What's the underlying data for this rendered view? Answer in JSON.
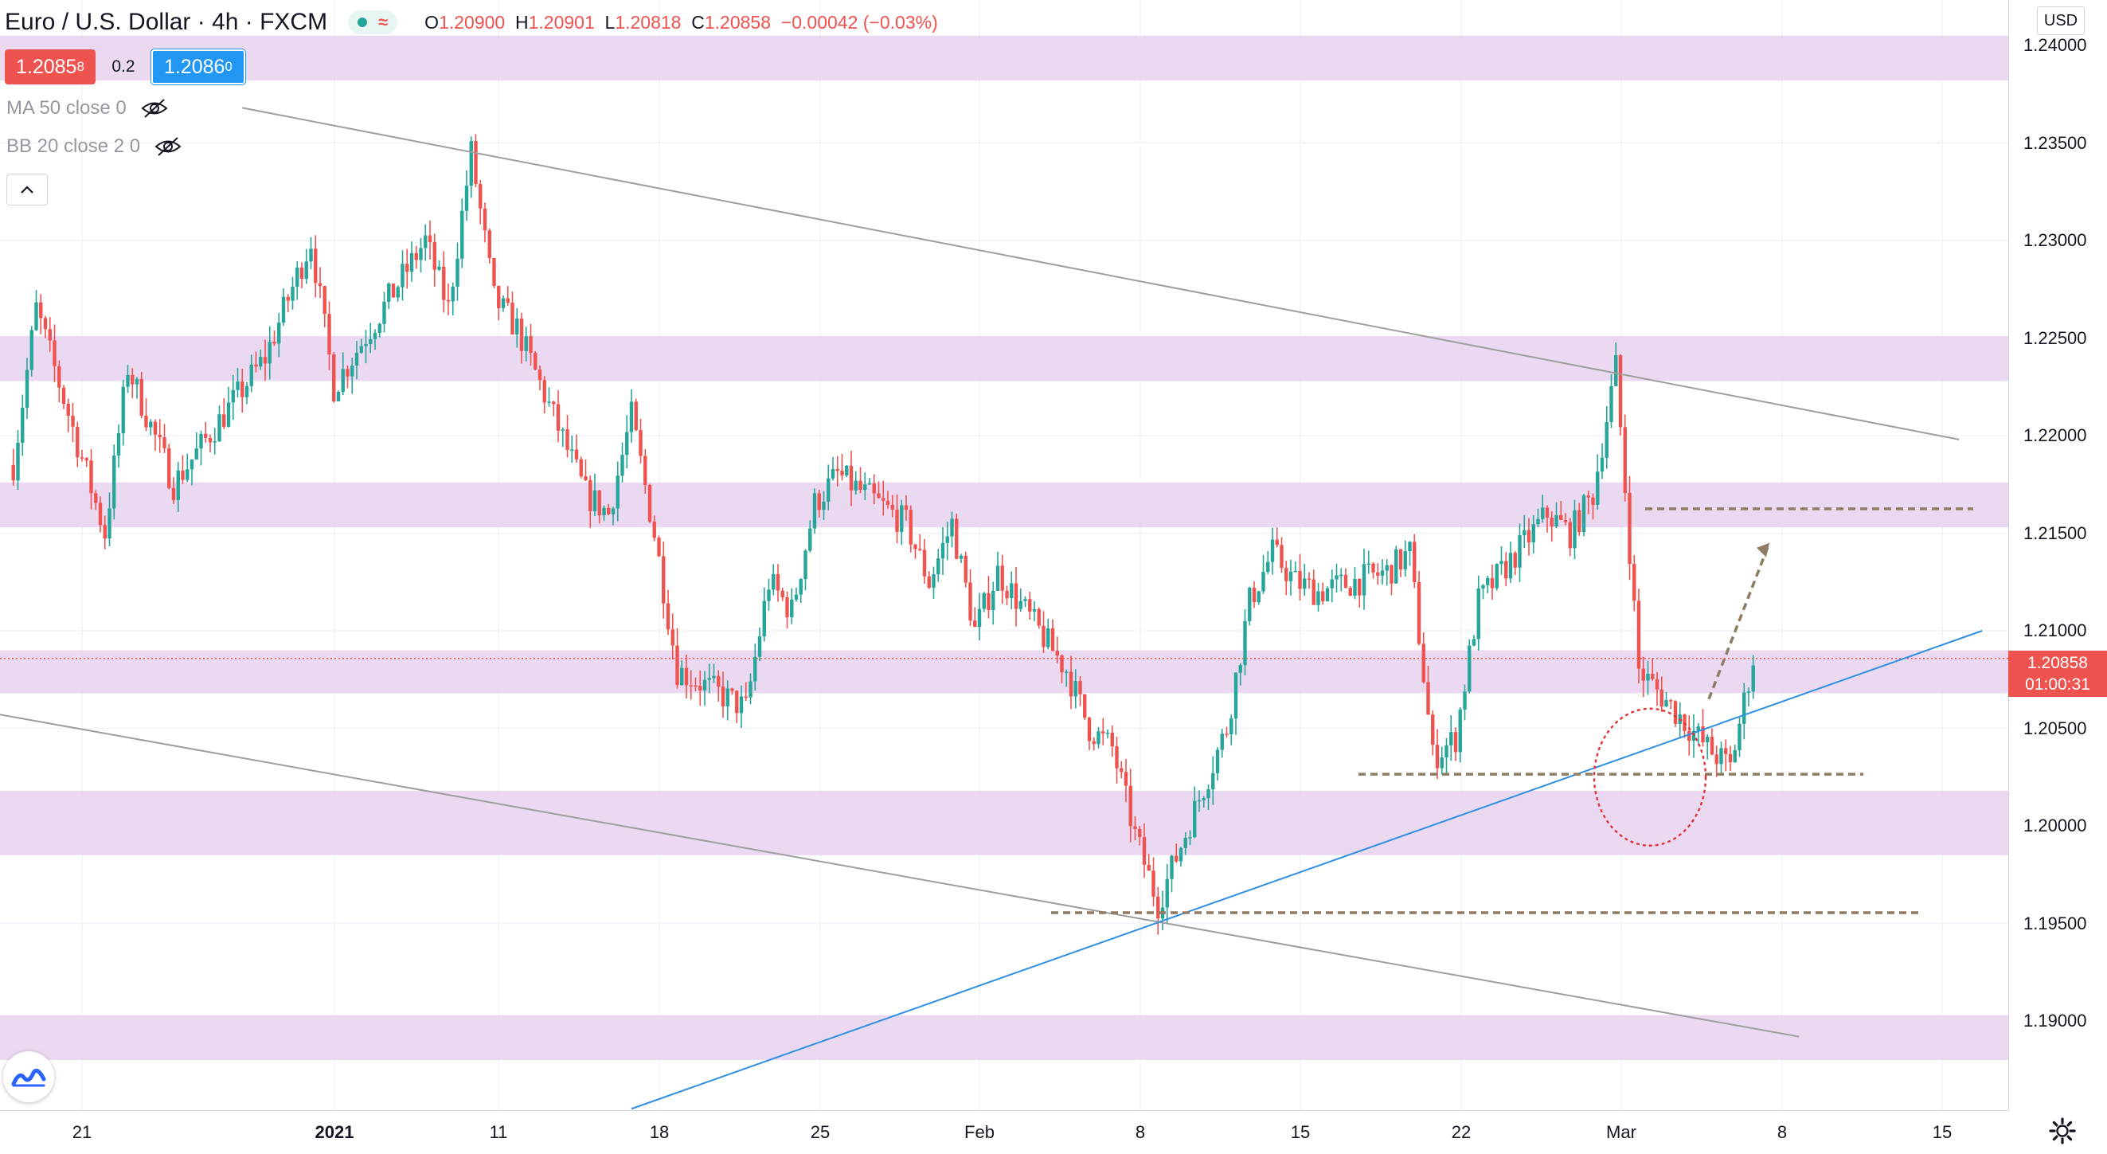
{
  "header": {
    "symbol": "Euro / U.S. Dollar",
    "timeframe": "4h",
    "exchange": "FXCM",
    "title_text": "Euro / U.S. Dollar · 4h · FXCM",
    "ohlc": {
      "o_label": "O",
      "o": "1.20900",
      "h_label": "H",
      "h": "1.20901",
      "l_label": "L",
      "l": "1.20818",
      "c_label": "C",
      "c": "1.20858",
      "change": "−0.00042 (−0.03%)"
    }
  },
  "trade": {
    "sell_main": "1.2085",
    "sell_small": "8",
    "spread": "0.2",
    "buy_main": "1.2086",
    "buy_small": "0"
  },
  "indicators": [
    {
      "label": "MA 50 close 0"
    },
    {
      "label": "BB 20 close 2 0"
    }
  ],
  "axis": {
    "currency": "USD",
    "current_price": "1.20858",
    "countdown": "01:00:31"
  },
  "colors": {
    "up": "#26a69a",
    "down": "#ef5350",
    "zone": "#e7d2ee",
    "trendline_gray": "#9e9e9e",
    "trendline_blue": "#2f8fe0",
    "level_dashed": "#8d7c63",
    "circle": "#e0343a"
  },
  "chart_data": {
    "type": "candlestick",
    "timeframe": "4h",
    "y_ticks": [
      "1.24000",
      "1.23500",
      "1.23000",
      "1.22500",
      "1.22000",
      "1.21500",
      "1.21000",
      "1.20500",
      "1.20000",
      "1.19500",
      "1.19000"
    ],
    "ylim": [
      1.1855,
      1.244
    ],
    "x_ticks": [
      {
        "label": "21",
        "bold": false
      },
      {
        "label": "2021",
        "bold": true
      },
      {
        "label": "11",
        "bold": false
      },
      {
        "label": "18",
        "bold": false
      },
      {
        "label": "25",
        "bold": false
      },
      {
        "label": "Feb",
        "bold": false
      },
      {
        "label": "8",
        "bold": false
      },
      {
        "label": "15",
        "bold": false
      },
      {
        "label": "22",
        "bold": false
      },
      {
        "label": "Mar",
        "bold": false
      },
      {
        "label": "8",
        "bold": false
      },
      {
        "label": "15",
        "bold": false
      }
    ],
    "keypoints": [
      {
        "date": "Dec 17",
        "price": 1.2185
      },
      {
        "date": "Dec 18",
        "price": 1.2265
      },
      {
        "date": "Dec 21",
        "price": 1.215
      },
      {
        "date": "Dec 22",
        "price": 1.2235
      },
      {
        "date": "Dec 24",
        "price": 1.2175
      },
      {
        "date": "Dec 28",
        "price": 1.224
      },
      {
        "date": "Dec 30",
        "price": 1.23
      },
      {
        "date": "Dec 31",
        "price": 1.2225
      },
      {
        "date": "Jan 4",
        "price": 1.23
      },
      {
        "date": "Jan 5",
        "price": 1.2265
      },
      {
        "date": "Jan 6",
        "price": 1.2345
      },
      {
        "date": "Jan 7",
        "price": 1.227
      },
      {
        "date": "Jan 8",
        "price": 1.2255
      },
      {
        "date": "Jan 11",
        "price": 1.217
      },
      {
        "date": "Jan 12",
        "price": 1.216
      },
      {
        "date": "Jan 13",
        "price": 1.221
      },
      {
        "date": "Jan 14",
        "price": 1.215
      },
      {
        "date": "Jan 15",
        "price": 1.208
      },
      {
        "date": "Jan 18",
        "price": 1.206
      },
      {
        "date": "Jan 19",
        "price": 1.2125
      },
      {
        "date": "Jan 20",
        "price": 1.211
      },
      {
        "date": "Jan 21",
        "price": 1.2165
      },
      {
        "date": "Jan 22",
        "price": 1.218
      },
      {
        "date": "Jan 25",
        "price": 1.2155
      },
      {
        "date": "Jan 26",
        "price": 1.2125
      },
      {
        "date": "Jan 27",
        "price": 1.2155
      },
      {
        "date": "Jan 28",
        "price": 1.21
      },
      {
        "date": "Jan 29",
        "price": 1.213
      },
      {
        "date": "Feb 1",
        "price": 1.208
      },
      {
        "date": "Feb 2",
        "price": 1.205
      },
      {
        "date": "Feb 3",
        "price": 1.204
      },
      {
        "date": "Feb 4",
        "price": 1.1995
      },
      {
        "date": "Feb 5",
        "price": 1.196
      },
      {
        "date": "Feb 8",
        "price": 1.205
      },
      {
        "date": "Feb 9",
        "price": 1.2115
      },
      {
        "date": "Feb 10",
        "price": 1.214
      },
      {
        "date": "Feb 11",
        "price": 1.2125
      },
      {
        "date": "Feb 12",
        "price": 1.212
      },
      {
        "date": "Feb 15",
        "price": 1.213
      },
      {
        "date": "Feb 16",
        "price": 1.214
      },
      {
        "date": "Feb 17",
        "price": 1.2035
      },
      {
        "date": "Feb 18",
        "price": 1.2045
      },
      {
        "date": "Feb 19",
        "price": 1.2115
      },
      {
        "date": "Feb 22",
        "price": 1.216
      },
      {
        "date": "Feb 23",
        "price": 1.215
      },
      {
        "date": "Feb 24",
        "price": 1.217
      },
      {
        "date": "Feb 25",
        "price": 1.2235
      },
      {
        "date": "Feb 26",
        "price": 1.208
      },
      {
        "date": "Mar 1",
        "price": 1.204
      },
      {
        "date": "Mar 2",
        "price": 1.203
      },
      {
        "date": "Mar 3",
        "price": 1.2086
      }
    ],
    "last_close": 1.20858,
    "zones": [
      {
        "from": 1.2382,
        "to": 1.2405
      },
      {
        "from": 1.2228,
        "to": 1.2251
      },
      {
        "from": 1.2153,
        "to": 1.2176
      },
      {
        "from": 1.2068,
        "to": 1.209
      },
      {
        "from": 1.1985,
        "to": 1.2018
      },
      {
        "from": 1.188,
        "to": 1.1903
      }
    ],
    "horizontal_levels_dashed": [
      1.21625,
      1.20265,
      1.19555
    ],
    "trendlines": [
      {
        "name": "",
        "color": "gray",
        "from": {
          "date": "Dec 27",
          "price": 1.2368
        },
        "to": {
          "date": "Mar 12",
          "price": 1.2198
        }
      },
      {
        "name": "",
        "color": "gray",
        "from": {
          "date": "Dec 15",
          "price": 1.206
        },
        "to": {
          "date": "Mar 5",
          "price": 1.1892
        }
      },
      {
        "name": "",
        "color": "blue",
        "from": {
          "date": "Jan 13",
          "price": 1.1855
        },
        "to": {
          "date": "Mar 13",
          "price": 1.21
        }
      }
    ],
    "annotations": {
      "arrow": {
        "from": {
          "date": "Mar 4",
          "price": 1.2065
        },
        "to": {
          "date": "Mar 7",
          "price": 1.2145
        }
      },
      "circle_center": {
        "date": "Mar 2",
        "price": 1.2025
      }
    },
    "legend": "none",
    "grid": true
  }
}
